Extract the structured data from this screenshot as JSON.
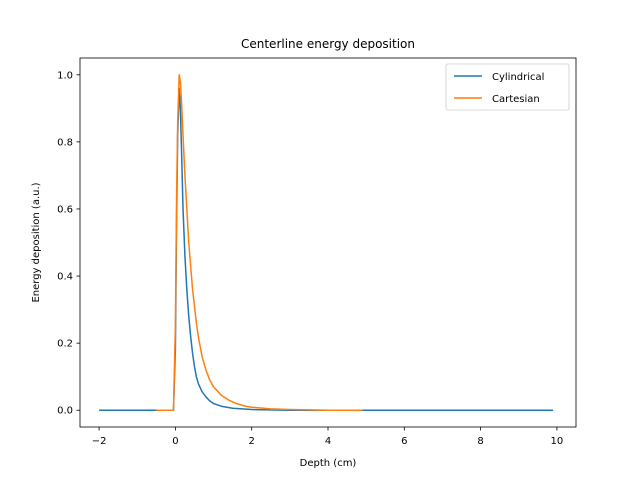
{
  "chart_data": {
    "type": "line",
    "title": "Centerline energy deposition",
    "xlabel": "Depth (cm)",
    "ylabel": "Energy deposition (a.u.)",
    "xlim": [
      -2.5,
      10.5
    ],
    "ylim": [
      -0.05,
      1.05
    ],
    "xticks": [
      -2,
      0,
      2,
      4,
      6,
      8,
      10
    ],
    "yticks": [
      0.0,
      0.2,
      0.4,
      0.6,
      0.8,
      1.0
    ],
    "xtick_labels": [
      "−2",
      "0",
      "2",
      "4",
      "6",
      "8",
      "10"
    ],
    "ytick_labels": [
      "0.0",
      "0.2",
      "0.4",
      "0.6",
      "0.8",
      "1.0"
    ],
    "grid": false,
    "legend_position": "top-right",
    "series": [
      {
        "name": "Cylindrical",
        "color": "#1f77b4",
        "x": [
          -2.0,
          -1.0,
          -0.5,
          -0.1,
          -0.05,
          0.0,
          0.03,
          0.06,
          0.1,
          0.13,
          0.16,
          0.2,
          0.25,
          0.3,
          0.35,
          0.4,
          0.45,
          0.5,
          0.55,
          0.6,
          0.7,
          0.8,
          0.9,
          1.0,
          1.2,
          1.5,
          2.0,
          2.5,
          3.0,
          4.0,
          5.0,
          6.0,
          7.0,
          8.0,
          9.0,
          9.9
        ],
        "y": [
          0.0,
          0.0,
          0.0,
          0.0,
          0.0,
          0.18,
          0.55,
          0.82,
          0.96,
          0.9,
          0.78,
          0.6,
          0.46,
          0.36,
          0.28,
          0.22,
          0.17,
          0.13,
          0.1,
          0.08,
          0.055,
          0.04,
          0.028,
          0.02,
          0.012,
          0.006,
          0.002,
          0.001,
          0.0,
          0.0,
          0.0,
          0.0,
          0.0,
          0.0,
          0.0,
          0.0
        ]
      },
      {
        "name": "Cartesian",
        "color": "#ff7f0e",
        "x": [
          -0.5,
          -0.25,
          -0.05,
          0.0,
          0.03,
          0.06,
          0.1,
          0.13,
          0.16,
          0.2,
          0.25,
          0.3,
          0.35,
          0.4,
          0.45,
          0.5,
          0.55,
          0.6,
          0.7,
          0.8,
          0.9,
          1.0,
          1.2,
          1.4,
          1.6,
          1.8,
          2.0,
          2.5,
          3.0,
          3.5,
          4.0,
          4.5,
          4.9
        ],
        "y": [
          0.0,
          0.0,
          0.0,
          0.25,
          0.62,
          0.86,
          1.0,
          0.98,
          0.92,
          0.82,
          0.7,
          0.6,
          0.5,
          0.43,
          0.36,
          0.31,
          0.26,
          0.22,
          0.16,
          0.12,
          0.09,
          0.07,
          0.045,
          0.03,
          0.02,
          0.013,
          0.009,
          0.004,
          0.002,
          0.001,
          0.0,
          0.0,
          0.0
        ]
      }
    ]
  }
}
